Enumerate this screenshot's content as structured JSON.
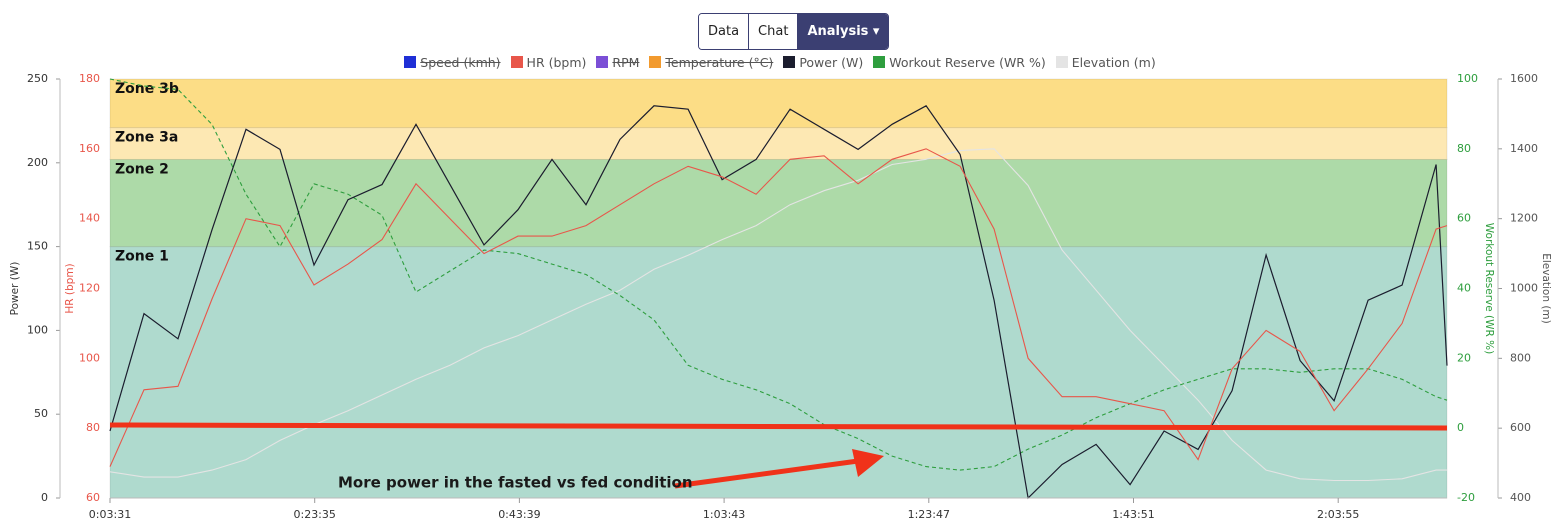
{
  "toolbar": {
    "buttons": [
      "Data",
      "Chat",
      "Analysis"
    ]
  },
  "chart_data": {
    "type": "line",
    "x": [
      211,
      411,
      611,
      811,
      1011,
      1211,
      1411,
      1611,
      1811,
      2011,
      2211,
      2411,
      2611,
      2811,
      3011,
      3211,
      3411,
      3611,
      3811,
      4011,
      4211,
      4411,
      4611,
      4811,
      5011,
      5211,
      5411,
      5611,
      5811,
      6011,
      6211,
      6411,
      6611,
      6811,
      7011,
      7211,
      7411,
      7611,
      7811,
      8011,
      8075
    ],
    "xlim": [
      211,
      8075
    ],
    "xticks": [
      {
        "value": 211,
        "label": "0:03:31"
      },
      {
        "value": 1415,
        "label": "0:23:35"
      },
      {
        "value": 2619,
        "label": "0:43:39"
      },
      {
        "value": 3823,
        "label": "1:03:43"
      },
      {
        "value": 5027,
        "label": "1:23:47"
      },
      {
        "value": 6231,
        "label": "1:43:51"
      },
      {
        "value": 7435,
        "label": "2:03:55"
      }
    ],
    "ylabel": "Power (W)",
    "ylim": [
      0,
      250
    ],
    "yticks": [
      0,
      50,
      100,
      150,
      200,
      250
    ],
    "y2label": "HR (bpm)",
    "y2lim": [
      60,
      180
    ],
    "y2ticks": [
      60,
      80,
      100,
      120,
      140,
      160,
      180
    ],
    "y3label": "Workout Reserve (WR %)",
    "y3lim": [
      -20,
      100
    ],
    "y3ticks": [
      -20,
      0,
      20,
      40,
      60,
      80,
      100
    ],
    "y4label": "Elevation (m)",
    "y4lim": [
      400,
      1600
    ],
    "y4ticks": [
      400,
      600,
      800,
      1000,
      1200,
      1400,
      1600
    ],
    "zones": [
      {
        "name": "Zone 1",
        "from": 0,
        "to": 150,
        "color": "#afdace"
      },
      {
        "name": "Zone 2",
        "from": 150,
        "to": 202,
        "color": "#addaa8"
      },
      {
        "name": "Zone 3a",
        "from": 202,
        "to": 221,
        "color": "#fde8b3"
      },
      {
        "name": "Zone 3b",
        "from": 221,
        "to": 250,
        "color": "#fcdd86"
      }
    ],
    "series": [
      {
        "name": "Speed (kmh)",
        "color": "#1f2fd6",
        "hidden": true
      },
      {
        "name": "HR (bpm)",
        "color": "#e8564a",
        "axis": "y2",
        "dash": false,
        "values": [
          69,
          91,
          92,
          117,
          140,
          138,
          121,
          127,
          134,
          150,
          140,
          130,
          135,
          135,
          138,
          144,
          150,
          155,
          152,
          147,
          157,
          158,
          150,
          157,
          160,
          155,
          137,
          100,
          89,
          89,
          87,
          85,
          71,
          97,
          108,
          102,
          85,
          97,
          110,
          137,
          138
        ]
      },
      {
        "name": "RPM",
        "color": "#7b4fd6",
        "hidden": true
      },
      {
        "name": "Temperature (°C)",
        "color": "#f29a2e",
        "hidden": true
      },
      {
        "name": "Power (W)",
        "color": "#1b1d2e",
        "axis": "y",
        "dash": false,
        "values": [
          40,
          110,
          95,
          160,
          220,
          208,
          139,
          178,
          187,
          223,
          187,
          151,
          172,
          202,
          175,
          214,
          234,
          232,
          190,
          202,
          232,
          220,
          208,
          223,
          234,
          205,
          118,
          0,
          20,
          32,
          8,
          40,
          29,
          64,
          145,
          82,
          58,
          118,
          127,
          199,
          79
        ]
      },
      {
        "name": "Workout Reserve (WR %)",
        "color": "#2e9e3e",
        "axis": "y3",
        "dash": true,
        "values": [
          100,
          98,
          97,
          87,
          67,
          52,
          70,
          67,
          61,
          39,
          45,
          51,
          50,
          47,
          44,
          38,
          31,
          18,
          14,
          11,
          7,
          1,
          -3,
          -8,
          -11,
          -12,
          -11,
          -6,
          -2,
          3,
          7,
          11,
          14,
          17,
          17,
          16,
          17,
          17,
          14,
          9,
          8
        ]
      },
      {
        "name": "Elevation (m)",
        "color": "#e4e4e4",
        "axis": "y4",
        "dash": false,
        "values": [
          475,
          460,
          460,
          480,
          510,
          565,
          610,
          650,
          695,
          740,
          780,
          830,
          865,
          910,
          955,
          995,
          1055,
          1095,
          1140,
          1180,
          1240,
          1280,
          1310,
          1355,
          1370,
          1395,
          1400,
          1295,
          1110,
          995,
          880,
          780,
          680,
          565,
          480,
          455,
          450,
          450,
          455,
          480,
          480
        ]
      }
    ],
    "annotation": "More power in the fasted vs fed condition"
  }
}
